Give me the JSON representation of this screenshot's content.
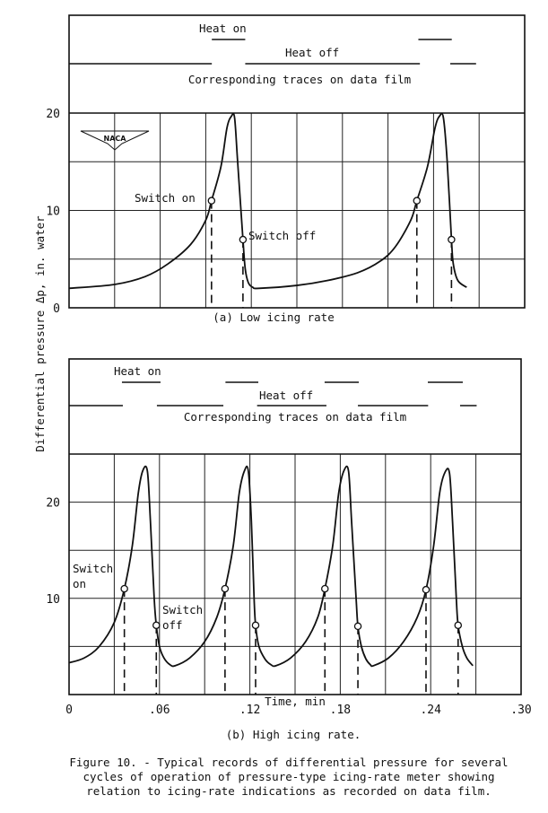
{
  "figure": {
    "y_label": "Differential pressure Δp, in. water",
    "caption_lines": [
      "Figure 10. - Typical records of differential pressure for several",
      "cycles of operation of pressure-type icing-rate meter showing",
      "relation to icing-rate indications as recorded on data film."
    ],
    "logo_text": "NACA"
  },
  "chart_data": [
    {
      "type": "line",
      "subtitle": "(a) Low icing rate",
      "xlabel": "",
      "ylabel": "Differential pressure Δp, in. water",
      "xlim": [
        0,
        0.3
      ],
      "ylim": [
        0,
        20
      ],
      "x_tick_labels": [],
      "y_ticks": [
        0,
        10,
        20
      ],
      "y_tick_labels": [
        "0",
        "10",
        "20"
      ],
      "grid": true,
      "annotations": {
        "switch_on": "Switch on",
        "switch_off": "Switch off"
      },
      "trace_panel": {
        "heat_on_label": "Heat on",
        "heat_off_label": "Heat off",
        "caption": "Corresponding traces on data film",
        "heat_on_segments": [
          [
            0.094,
            0.116
          ],
          [
            0.23,
            0.252
          ]
        ],
        "heat_off_segments": [
          [
            0,
            0.094
          ],
          [
            0.116,
            0.231
          ],
          [
            0.251,
            0.268
          ]
        ]
      },
      "curve": [
        [
          0,
          2
        ],
        [
          0.03,
          2.4
        ],
        [
          0.05,
          3.2
        ],
        [
          0.065,
          4.5
        ],
        [
          0.08,
          6.5
        ],
        [
          0.09,
          9
        ],
        [
          0.0938,
          11
        ],
        [
          0.1,
          14.5
        ],
        [
          0.104,
          18.5
        ],
        [
          0.107,
          19.7
        ],
        [
          0.109,
          19.5
        ],
        [
          0.111,
          15
        ],
        [
          0.1145,
          7
        ],
        [
          0.116,
          4
        ],
        [
          0.118,
          2.6
        ],
        [
          0.121,
          2.1
        ],
        [
          0.125,
          2
        ],
        [
          0.15,
          2.3
        ],
        [
          0.17,
          2.8
        ],
        [
          0.19,
          3.6
        ],
        [
          0.205,
          4.8
        ],
        [
          0.215,
          6.3
        ],
        [
          0.225,
          9
        ],
        [
          0.229,
          11
        ],
        [
          0.236,
          14.5
        ],
        [
          0.241,
          18.5
        ],
        [
          0.244,
          19.7
        ],
        [
          0.2465,
          19.5
        ],
        [
          0.249,
          15
        ],
        [
          0.2518,
          7
        ],
        [
          0.253,
          4.5
        ],
        [
          0.256,
          2.8
        ],
        [
          0.2618,
          2.1
        ]
      ],
      "switch_on_points": [
        [
          0.0938,
          11
        ],
        [
          0.229,
          11
        ]
      ],
      "switch_off_points": [
        [
          0.1145,
          7
        ],
        [
          0.2518,
          7
        ]
      ]
    },
    {
      "type": "line",
      "subtitle": "(b) High icing rate.",
      "xlabel": "Time, min",
      "ylabel": "Differential pressure Δp, in. water",
      "xlim": [
        0,
        0.3
      ],
      "ylim": [
        0,
        25
      ],
      "x_ticks": [
        0,
        0.06,
        0.12,
        0.18,
        0.24,
        0.3
      ],
      "x_tick_labels": [
        "0",
        ".06",
        ".12",
        ".18",
        ".24",
        ".30"
      ],
      "y_ticks": [
        10,
        20
      ],
      "y_tick_labels": [
        "10",
        "20"
      ],
      "grid": true,
      "annotations": {
        "switch_on": [
          "Switch",
          "on"
        ],
        "switch_off": [
          "Switch",
          "off"
        ]
      },
      "trace_panel": {
        "heat_on_label": "Heat on",
        "heat_off_label": "Heat off",
        "caption": "Corresponding traces on data film",
        "heat_on_segments": [
          [
            0.0351,
            0.0607
          ],
          [
            0.1038,
            0.1256
          ],
          [
            0.1696,
            0.1923
          ],
          [
            0.2381,
            0.2613
          ]
        ],
        "heat_off_segments": [
          [
            0,
            0.0357
          ],
          [
            0.0583,
            0.1024
          ],
          [
            0.1248,
            0.1708
          ],
          [
            0.1917,
            0.2383
          ],
          [
            0.2595,
            0.2705
          ]
        ]
      },
      "curve": [
        [
          0,
          3.3
        ],
        [
          0.01,
          3.8
        ],
        [
          0.02,
          5
        ],
        [
          0.03,
          7.5
        ],
        [
          0.0367,
          11
        ],
        [
          0.042,
          15.5
        ],
        [
          0.046,
          21
        ],
        [
          0.049,
          23.3
        ],
        [
          0.052,
          23.2
        ],
        [
          0.054,
          18
        ],
        [
          0.0565,
          10
        ],
        [
          0.0579,
          7.2
        ],
        [
          0.06,
          5
        ],
        [
          0.063,
          3.8
        ],
        [
          0.067,
          3.1
        ],
        [
          0.0704,
          3
        ],
        [
          0.08,
          3.8
        ],
        [
          0.09,
          5.5
        ],
        [
          0.098,
          8
        ],
        [
          0.1035,
          11
        ],
        [
          0.109,
          15.5
        ],
        [
          0.113,
          21
        ],
        [
          0.1165,
          23.3
        ],
        [
          0.119,
          23.2
        ],
        [
          0.121,
          18
        ],
        [
          0.1228,
          10
        ],
        [
          0.1238,
          7.2
        ],
        [
          0.126,
          5
        ],
        [
          0.13,
          3.7
        ],
        [
          0.134,
          3.1
        ],
        [
          0.1373,
          3
        ],
        [
          0.147,
          3.8
        ],
        [
          0.157,
          5.5
        ],
        [
          0.165,
          8
        ],
        [
          0.1698,
          11
        ],
        [
          0.175,
          15.5
        ],
        [
          0.179,
          21
        ],
        [
          0.1825,
          23.3
        ],
        [
          0.1855,
          23.2
        ],
        [
          0.1875,
          18
        ],
        [
          0.1905,
          10
        ],
        [
          0.1917,
          7.1
        ],
        [
          0.194,
          5
        ],
        [
          0.197,
          3.7
        ],
        [
          0.2,
          3.1
        ],
        [
          0.2021,
          3
        ],
        [
          0.212,
          3.8
        ],
        [
          0.222,
          5.5
        ],
        [
          0.231,
          8
        ],
        [
          0.2369,
          10.9
        ],
        [
          0.242,
          15.5
        ],
        [
          0.246,
          21
        ],
        [
          0.2495,
          23.1
        ],
        [
          0.2525,
          23
        ],
        [
          0.2545,
          18
        ],
        [
          0.257,
          10
        ],
        [
          0.2582,
          7.2
        ],
        [
          0.261,
          5
        ],
        [
          0.264,
          3.8
        ],
        [
          0.268,
          3
        ]
      ],
      "switch_on_points": [
        [
          0.0367,
          11
        ],
        [
          0.1035,
          11
        ],
        [
          0.1698,
          11
        ],
        [
          0.2369,
          10.9
        ]
      ],
      "switch_off_points": [
        [
          0.0579,
          7.2
        ],
        [
          0.1238,
          7.2
        ],
        [
          0.1917,
          7.1
        ],
        [
          0.2582,
          7.2
        ]
      ]
    }
  ]
}
